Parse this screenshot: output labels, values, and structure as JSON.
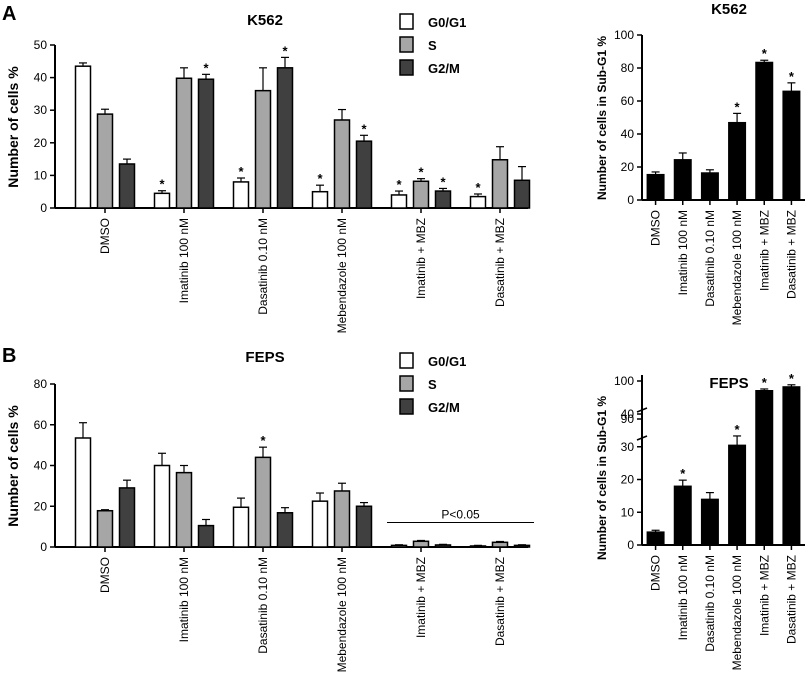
{
  "panels": {
    "a": "A",
    "b": "B"
  },
  "chart_data": [
    {
      "type": "bar",
      "title": "K562",
      "xlabel": "",
      "ylabel": "Number of cells %",
      "ylim": [
        0,
        50
      ],
      "yticks": [
        0,
        10,
        20,
        30,
        40,
        50
      ],
      "categories": [
        "DMSO",
        "Imatinib 100 nM",
        "Dasatinib 0.10 nM",
        "Mebendazole 100 nM",
        "Imatinib + MBZ",
        "Dasatinib + MBZ"
      ],
      "legend": "top-center",
      "series": [
        {
          "name": "G0/G1",
          "color": "#ffffff",
          "values": [
            43.5,
            4.5,
            8.0,
            5.0,
            4.0,
            3.5
          ],
          "errors": [
            1.0,
            0.8,
            1.2,
            2.0,
            1.2,
            0.8
          ],
          "significance": [
            "",
            "*",
            "*",
            "*",
            "*",
            "*"
          ]
        },
        {
          "name": "S",
          "color": "#a6a6a6",
          "values": [
            28.8,
            39.8,
            36.0,
            27.0,
            8.2,
            14.8
          ],
          "errors": [
            1.5,
            3.2,
            7.0,
            3.2,
            0.8,
            4.0
          ],
          "significance": [
            "",
            "",
            "",
            "",
            "*",
            ""
          ]
        },
        {
          "name": "G2/M",
          "color": "#404040",
          "values": [
            13.5,
            39.5,
            43.0,
            20.5,
            5.2,
            8.5
          ],
          "errors": [
            1.5,
            1.5,
            3.2,
            1.8,
            0.8,
            4.2
          ],
          "significance": [
            "",
            "*",
            "*",
            "*",
            "*",
            ""
          ]
        }
      ]
    },
    {
      "type": "bar",
      "title": "K562",
      "xlabel": "",
      "ylabel": "Number of cells in Sub-G1 %",
      "ylim": [
        0,
        100
      ],
      "yticks": [
        0,
        20,
        40,
        60,
        80,
        100
      ],
      "categories": [
        "DMSO",
        "Imatinib 100 nM",
        "Dasatinib 0.10 nM",
        "Mebendazole 100 nM",
        "Imatinib + MBZ",
        "Dasatinib + MBZ"
      ],
      "series": [
        {
          "name": "Sub-G1",
          "color": "#000000",
          "values": [
            15.5,
            24.5,
            16.5,
            47.0,
            83.5,
            66.0
          ],
          "errors": [
            1.5,
            4.0,
            1.8,
            5.5,
            1.2,
            5.0
          ],
          "significance": [
            "",
            "",
            "",
            "*",
            "*",
            "*"
          ]
        }
      ]
    },
    {
      "type": "bar",
      "title": "FEPS",
      "xlabel": "",
      "ylabel": "Number of cells %",
      "ylim": [
        0,
        80
      ],
      "yticks": [
        0,
        20,
        40,
        60,
        80
      ],
      "categories": [
        "DMSO",
        "Imatinib 100 nM",
        "Dasatinib 0.10 nM",
        "Mebendazole 100 nM",
        "Imatinib + MBZ",
        "Dasatinib + MBZ"
      ],
      "legend": "top-center",
      "annotation": {
        "text": "P<0.05",
        "from_category": 4,
        "to_category": 5,
        "y": 12
      },
      "series": [
        {
          "name": "G0/G1",
          "color": "#ffffff",
          "values": [
            53.5,
            40.0,
            19.5,
            22.5,
            0.8,
            0.5
          ],
          "errors": [
            7.5,
            6.0,
            4.5,
            4.0,
            0.3,
            0.3
          ],
          "significance": [
            "",
            "",
            "",
            "",
            "",
            ""
          ]
        },
        {
          "name": "S",
          "color": "#a6a6a6",
          "values": [
            17.8,
            36.5,
            44.0,
            27.5,
            2.8,
            2.3
          ],
          "errors": [
            0.5,
            3.5,
            5.0,
            3.8,
            0.4,
            0.4
          ],
          "significance": [
            "",
            "",
            "*",
            "",
            "",
            ""
          ]
        },
        {
          "name": "G2/M",
          "color": "#404040",
          "values": [
            29.0,
            10.5,
            16.8,
            20.0,
            1.0,
            0.8
          ],
          "errors": [
            3.8,
            3.0,
            2.5,
            1.8,
            0.3,
            0.3
          ],
          "significance": [
            "",
            "",
            "",
            "",
            "",
            ""
          ]
        }
      ]
    },
    {
      "type": "bar",
      "title": "FEPS",
      "xlabel": "",
      "ylabel": "Number of cells in Sub-G1 %",
      "axis_break": {
        "lower": [
          0,
          40
        ],
        "upper": [
          85,
          100
        ]
      },
      "yticks": [
        0,
        10,
        20,
        30,
        40,
        90,
        100
      ],
      "categories": [
        "DMSO",
        "Imatinib 100 nM",
        "Dasatinib 0.10 nM",
        "Mebendazole 100 nM",
        "Imatinib + MBZ",
        "Dasatinib + MBZ"
      ],
      "series": [
        {
          "name": "Sub-G1",
          "color": "#000000",
          "values": [
            4.0,
            18.0,
            14.0,
            30.5,
            97.5,
            98.5
          ],
          "errors": [
            0.5,
            1.8,
            2.0,
            2.8,
            0.4,
            0.5
          ],
          "significance": [
            "",
            "*",
            "",
            "*",
            "*",
            "*"
          ]
        }
      ]
    }
  ]
}
